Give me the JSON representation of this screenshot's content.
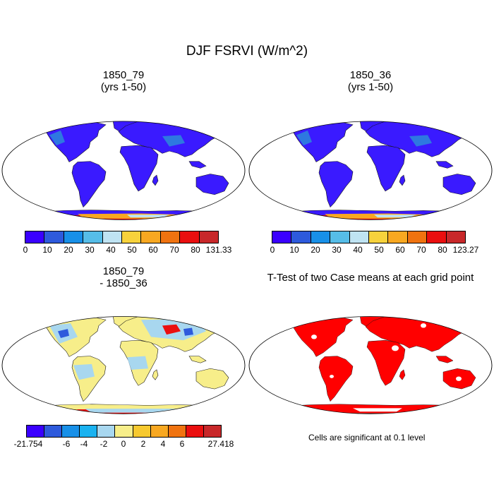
{
  "title": "DJF FSRVI (W/m^2)",
  "panels": [
    {
      "title_line1": "1850_79",
      "title_line2": "(yrs 1-50)"
    },
    {
      "title_line1": "1850_36",
      "title_line2": "(yrs 1-50)"
    },
    {
      "title_line1": "1850_79",
      "title_line2": "- 1850_36"
    },
    {
      "title_line1": "T-Test of two Case means at each grid point",
      "title_line2": ""
    }
  ],
  "colorbars": {
    "case1": {
      "colors": [
        "#3a00ff",
        "#2e5adc",
        "#1890e8",
        "#56bde8",
        "#bfe3f2",
        "#f7d23c",
        "#f8a821",
        "#f07310",
        "#ea0f0f",
        "#c8282a"
      ],
      "labels": [
        "0",
        "10",
        "20",
        "30",
        "40",
        "50",
        "60",
        "70",
        "80",
        "131.33"
      ]
    },
    "case2": {
      "colors": [
        "#3a00ff",
        "#2e5adc",
        "#1890e8",
        "#56bde8",
        "#bfe3f2",
        "#f7d23c",
        "#f8a821",
        "#f07310",
        "#ea0f0f",
        "#c8282a"
      ],
      "labels": [
        "0",
        "10",
        "20",
        "30",
        "40",
        "50",
        "60",
        "70",
        "80",
        "123.27"
      ]
    },
    "diff": {
      "colors": [
        "#3a00ff",
        "#2e5adc",
        "#1890e8",
        "#1ab2f0",
        "#a8d7ef",
        "#f7ee8a",
        "#f7c92f",
        "#f8a821",
        "#f07310",
        "#ea0f0f",
        "#c8282a"
      ],
      "labels": [
        "-21.754",
        "-6",
        "-4",
        "-2",
        "0",
        "2",
        "4",
        "6",
        "27.418"
      ]
    }
  },
  "significance_note": "Cells are significant at 0.1 level",
  "palette": {
    "case_land": "#3a1aff",
    "case_land_warm": "#2e78e0",
    "diff_land": "#f7ee8a",
    "diff_land_blue": "#a8d7ef",
    "ttest": "#ff0000",
    "antarctica_red": "#ea0f0f",
    "antarctica_orange": "#f8a821",
    "antarctica_light": "#bfe3f2"
  }
}
